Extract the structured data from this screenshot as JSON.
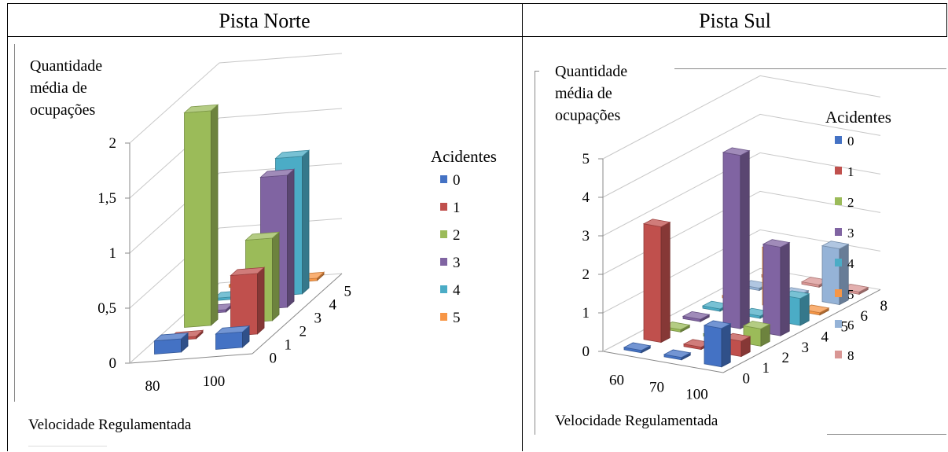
{
  "table": {
    "headers": [
      "Pista Norte",
      "Pista Sul"
    ]
  },
  "chart_data": [
    {
      "type": "bar",
      "panel": "Pista Norte",
      "x_categories": [
        "80",
        "100"
      ],
      "depth_categories": [
        "0",
        "1",
        "2",
        "3",
        "4",
        "5"
      ],
      "ylabel": "Quantidade média de ocupações",
      "xlabel": "Velocidade Regulamentada",
      "ylim": [
        0,
        2
      ],
      "yticks": [
        "0",
        "0,5",
        "1",
        "1,5",
        "2"
      ],
      "legend_title": "Acidentes",
      "series": [
        {
          "name": "0",
          "color": "#4472C4",
          "values": [
            0.12,
            0.14
          ]
        },
        {
          "name": "1",
          "color": "#C0504D",
          "values": [
            0.0,
            0.55
          ]
        },
        {
          "name": "2",
          "color": "#9BBB59",
          "values": [
            1.95,
            0.75
          ]
        },
        {
          "name": "3",
          "color": "#8064A2",
          "values": [
            0.0,
            1.2
          ]
        },
        {
          "name": "4",
          "color": "#4BACC6",
          "values": [
            0.0,
            1.25
          ]
        },
        {
          "name": "5",
          "color": "#F79646",
          "values": [
            0.0,
            0.0
          ]
        }
      ]
    },
    {
      "type": "bar",
      "panel": "Pista Sul",
      "x_categories": [
        "60",
        "70",
        "100"
      ],
      "depth_categories": [
        "0",
        "1",
        "2",
        "3",
        "4",
        "5",
        "6",
        "8"
      ],
      "ylabel": "Quantidade média de ocupações",
      "xlabel": "Velocidade Regulamentada",
      "ylim": [
        0,
        5
      ],
      "yticks": [
        "0",
        "1",
        "2",
        "3",
        "4",
        "5"
      ],
      "legend_title": "Acidentes",
      "series": [
        {
          "name": "0",
          "color": "#4472C4",
          "values": [
            0.0,
            0.0,
            1.0
          ]
        },
        {
          "name": "1",
          "color": "#C0504D",
          "values": [
            3.0,
            0.0,
            0.4
          ]
        },
        {
          "name": "2",
          "color": "#9BBB59",
          "values": [
            0.0,
            0.0,
            0.45
          ]
        },
        {
          "name": "3",
          "color": "#8064A2",
          "values": [
            0.0,
            4.5,
            2.3
          ]
        },
        {
          "name": "4",
          "color": "#4BACC6",
          "values": [
            0.0,
            0.0,
            0.7
          ]
        },
        {
          "name": "5",
          "color": "#F79646",
          "values": [
            0.0,
            1.5,
            0.0
          ]
        },
        {
          "name": "6",
          "color": "#95B3D7",
          "values": [
            0.0,
            0.0,
            1.45
          ]
        },
        {
          "name": "8",
          "color": "#D99694",
          "values": [
            0.0,
            0.0,
            0.0
          ]
        }
      ]
    }
  ]
}
